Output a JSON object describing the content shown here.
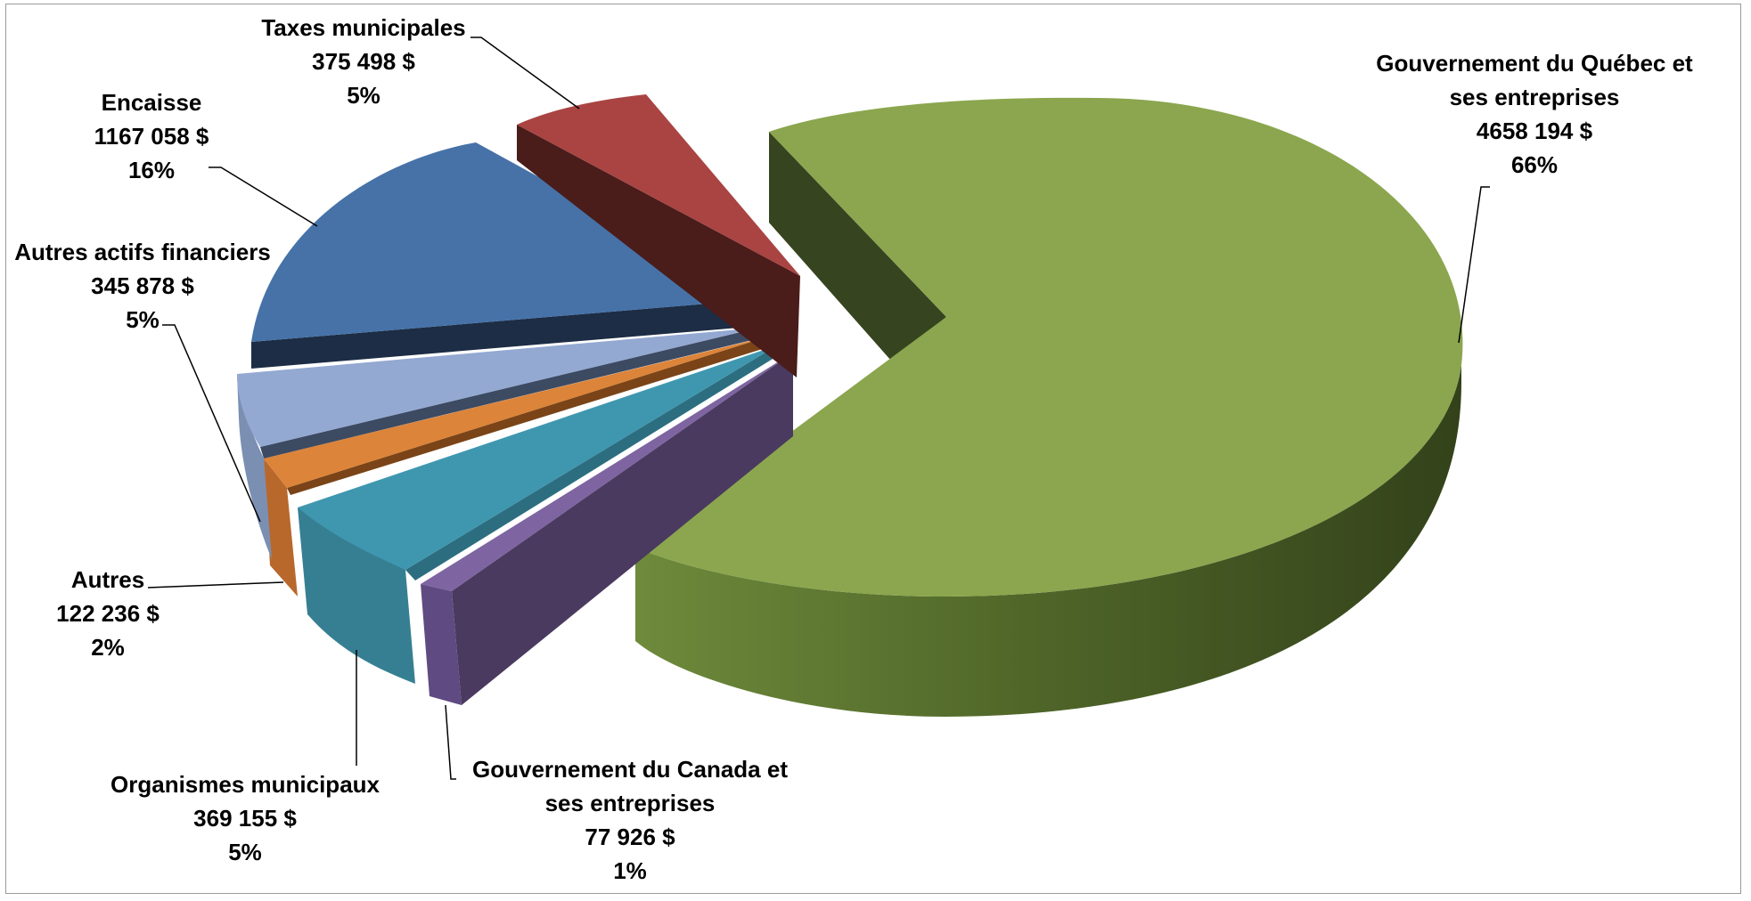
{
  "chart_data": {
    "type": "pie",
    "variant": "3d-exploded",
    "title": "",
    "slices": [
      {
        "label": "Gouvernement du Québec et ses entreprises",
        "label_lines": [
          "Gouvernement du Québec et",
          "ses entreprises"
        ],
        "value_text": "4658 194  $",
        "value": 4658194,
        "percent_text": "66%",
        "color": "#8BA64E"
      },
      {
        "label": "Gouvernement du Canada et ses entreprises",
        "label_lines": [
          "Gouvernement du Canada et",
          "ses entreprises"
        ],
        "value_text": "77 926  $",
        "value": 77926,
        "percent_text": "1%",
        "color": "#7E64A1"
      },
      {
        "label": "Organismes municipaux",
        "label_lines": [
          "Organismes municipaux"
        ],
        "value_text": "369 155  $",
        "value": 369155,
        "percent_text": "5%",
        "color": "#3F97AF"
      },
      {
        "label": "Autres",
        "label_lines": [
          "Autres"
        ],
        "value_text": "122 236  $",
        "value": 122236,
        "percent_text": "2%",
        "color": "#DC8439"
      },
      {
        "label": "Autres actifs financiers",
        "label_lines": [
          "Autres actifs financiers"
        ],
        "value_text": "345 878  $",
        "value": 345878,
        "percent_text": "5%",
        "color": "#93A9D2"
      },
      {
        "label": "Encaisse",
        "label_lines": [
          "Encaisse"
        ],
        "value_text": "1167 058  $",
        "value": 1167058,
        "percent_text": "16%",
        "color": "#4672A8"
      },
      {
        "label": "Taxes municipales",
        "label_lines": [
          "Taxes municipales"
        ],
        "value_text": "375 498  $",
        "value": 375498,
        "percent_text": "5%",
        "color": "#A94442"
      }
    ]
  }
}
